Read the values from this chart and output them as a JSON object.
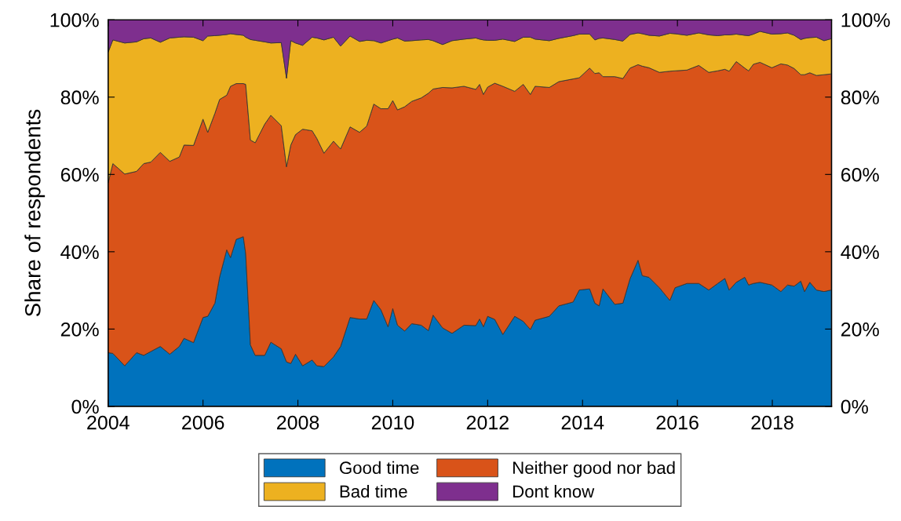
{
  "chart_data": {
    "type": "area",
    "stacked": true,
    "ylabel": "Share of respondents",
    "x": [
      2004.0,
      2004.1,
      2004.35,
      2004.6,
      2004.75,
      2004.9,
      2005.1,
      2005.3,
      2005.5,
      2005.6,
      2005.8,
      2006.0,
      2006.1,
      2006.25,
      2006.35,
      2006.5,
      2006.58,
      2006.7,
      2006.85,
      2006.9,
      2007.0,
      2007.1,
      2007.3,
      2007.43,
      2007.65,
      2007.76,
      2007.85,
      2007.95,
      2008.1,
      2008.3,
      2008.4,
      2008.55,
      2008.75,
      2008.9,
      2009.1,
      2009.3,
      2009.45,
      2009.6,
      2009.75,
      2009.9,
      2010.0,
      2010.1,
      2010.25,
      2010.4,
      2010.6,
      2010.75,
      2010.85,
      2011.05,
      2011.25,
      2011.5,
      2011.75,
      2011.83,
      2011.91,
      2012.0,
      2012.15,
      2012.32,
      2012.57,
      2012.75,
      2012.9,
      2013.0,
      2013.3,
      2013.5,
      2013.8,
      2013.93,
      2014.15,
      2014.26,
      2014.35,
      2014.43,
      2014.68,
      2014.85,
      2015.0,
      2015.17,
      2015.26,
      2015.4,
      2015.62,
      2015.84,
      2015.95,
      2016.2,
      2016.45,
      2016.66,
      2016.85,
      2017.0,
      2017.09,
      2017.24,
      2017.42,
      2017.5,
      2017.6,
      2017.74,
      2017.99,
      2018.18,
      2018.32,
      2018.46,
      2018.6,
      2018.68,
      2018.79,
      2018.93,
      2019.09,
      2019.24
    ],
    "series": [
      {
        "name": "Good time",
        "color": "#0072bd",
        "values": [
          13.9,
          13.7,
          10.5,
          13.9,
          13.2,
          14.2,
          15.5,
          13.5,
          15.5,
          17.6,
          16.5,
          23.0,
          23.3,
          26.7,
          33.5,
          40.5,
          38.5,
          43.2,
          43.9,
          39.5,
          15.9,
          13.2,
          13.2,
          16.6,
          14.9,
          11.5,
          11.1,
          13.5,
          10.5,
          12.0,
          10.5,
          10.3,
          12.8,
          15.5,
          23.0,
          22.6,
          22.6,
          27.4,
          25.0,
          20.6,
          25.3,
          21.0,
          19.5,
          21.4,
          21.0,
          19.6,
          23.6,
          20.3,
          18.9,
          21.0,
          20.9,
          22.6,
          20.6,
          23.3,
          22.5,
          18.6,
          23.3,
          22.0,
          19.9,
          22.3,
          23.3,
          26.0,
          27.0,
          30.1,
          30.4,
          26.7,
          26.0,
          30.4,
          26.4,
          26.7,
          33.0,
          37.8,
          33.8,
          33.4,
          30.7,
          27.4,
          30.7,
          31.8,
          31.8,
          30.1,
          31.8,
          33.1,
          30.1,
          32.1,
          33.4,
          31.4,
          31.8,
          32.1,
          31.4,
          29.7,
          31.4,
          31.1,
          32.4,
          29.7,
          32.1,
          30.1,
          29.7,
          30.1
        ]
      },
      {
        "name": "Neither good nor bad",
        "color": "#d95319",
        "values": [
          43.9,
          49.1,
          49.6,
          46.9,
          49.6,
          49.0,
          50.2,
          49.9,
          49.0,
          50.0,
          51.0,
          51.3,
          47.6,
          49.1,
          45.9,
          40.0,
          44.3,
          40.3,
          39.6,
          43.8,
          53.0,
          55.0,
          59.8,
          58.7,
          57.7,
          50.5,
          56.5,
          56.8,
          61.2,
          59.3,
          58.8,
          55.2,
          55.8,
          51.1,
          49.3,
          48.3,
          49.9,
          50.8,
          52.0,
          56.4,
          53.8,
          55.7,
          58.0,
          57.5,
          58.8,
          61.4,
          58.5,
          62.2,
          63.5,
          61.8,
          61.1,
          60.7,
          60.1,
          59.3,
          61.1,
          64.2,
          58.2,
          61.3,
          60.8,
          60.5,
          59.2,
          58.0,
          57.7,
          54.9,
          57.1,
          59.4,
          60.3,
          54.9,
          58.9,
          58.1,
          54.5,
          50.6,
          54.2,
          54.2,
          55.7,
          59.3,
          56.1,
          55.2,
          56.4,
          56.3,
          55.0,
          54.1,
          56.6,
          57.1,
          54.1,
          55.4,
          56.7,
          56.9,
          56.2,
          58.9,
          56.9,
          56.3,
          53.4,
          56.1,
          54.2,
          55.5,
          56.1,
          55.9
        ]
      },
      {
        "name": "Bad time",
        "color": "#edb120",
        "values": [
          33.8,
          32.0,
          33.9,
          33.5,
          32.3,
          32.1,
          28.5,
          31.9,
          31.0,
          28.0,
          28.0,
          20.3,
          24.9,
          20.1,
          16.6,
          15.7,
          13.6,
          12.7,
          12.5,
          12.2,
          26.0,
          26.5,
          21.3,
          18.7,
          21.5,
          22.9,
          27.0,
          23.7,
          21.7,
          24.2,
          26.0,
          29.3,
          26.9,
          26.6,
          23.5,
          23.5,
          22.2,
          16.4,
          17.0,
          17.6,
          15.9,
          18.6,
          17.0,
          15.7,
          15.0,
          13.9,
          12.5,
          11.1,
          12.2,
          12.2,
          13.3,
          11.7,
          14.1,
          12.1,
          11.1,
          12.2,
          12.9,
          12.2,
          14.8,
          12.2,
          12.1,
          11.2,
          11.2,
          11.3,
          8.8,
          8.7,
          8.9,
          10.0,
          9.6,
          9.7,
          8.7,
          8.2,
          8.4,
          8.4,
          9.4,
          9.8,
          9.6,
          9.0,
          8.4,
          9.7,
          9.1,
          8.9,
          9.4,
          7.1,
          8.5,
          9.1,
          7.8,
          8.0,
          8.7,
          7.8,
          8.3,
          8.6,
          9.1,
          9.4,
          9.1,
          9.9,
          8.8,
          9.1
        ]
      },
      {
        "name": "Dont know",
        "color": "#7e2f8e",
        "values": [
          8.4,
          5.2,
          6.0,
          5.7,
          4.9,
          4.7,
          5.8,
          4.7,
          4.5,
          4.4,
          4.5,
          5.4,
          4.2,
          4.1,
          4.0,
          3.8,
          3.6,
          3.8,
          4.0,
          4.5,
          5.1,
          5.3,
          5.7,
          6.0,
          5.9,
          15.1,
          5.4,
          6.0,
          6.6,
          4.5,
          4.7,
          5.2,
          4.5,
          6.8,
          4.2,
          5.6,
          5.3,
          5.4,
          6.0,
          5.4,
          5.0,
          4.7,
          5.5,
          5.4,
          5.2,
          5.1,
          5.4,
          6.4,
          5.4,
          5.0,
          4.7,
          5.0,
          5.2,
          5.3,
          5.3,
          5.0,
          5.6,
          4.5,
          4.5,
          5.0,
          5.4,
          4.8,
          4.1,
          3.7,
          3.7,
          5.2,
          4.8,
          4.7,
          5.1,
          5.5,
          3.8,
          3.4,
          3.6,
          4.0,
          4.2,
          3.5,
          3.6,
          4.0,
          3.4,
          3.9,
          4.1,
          3.9,
          3.9,
          3.7,
          4.0,
          4.1,
          3.7,
          3.0,
          3.7,
          3.6,
          3.4,
          4.0,
          5.1,
          4.8,
          4.6,
          4.5,
          5.4,
          4.9
        ]
      }
    ],
    "xlim": [
      2004,
      2019.25
    ],
    "xticks": [
      2004,
      2006,
      2008,
      2010,
      2012,
      2014,
      2016,
      2018
    ],
    "ylim": [
      0,
      100
    ],
    "yticks": [
      {
        "value": 0,
        "label": "0%"
      },
      {
        "value": 20,
        "label": "20%"
      },
      {
        "value": 40,
        "label": "40%"
      },
      {
        "value": 60,
        "label": "60%"
      },
      {
        "value": 80,
        "label": "80%"
      },
      {
        "value": 100,
        "label": "100%"
      }
    ],
    "y2lim": [
      0,
      100
    ],
    "y2ticks": [
      {
        "value": 0,
        "label": "0%"
      },
      {
        "value": 20,
        "label": "20%"
      },
      {
        "value": 40,
        "label": "40%"
      },
      {
        "value": 60,
        "label": "60%"
      },
      {
        "value": 80,
        "label": "80%"
      },
      {
        "value": 100,
        "label": "100%"
      }
    ],
    "legend": "bottom",
    "grid": false
  }
}
